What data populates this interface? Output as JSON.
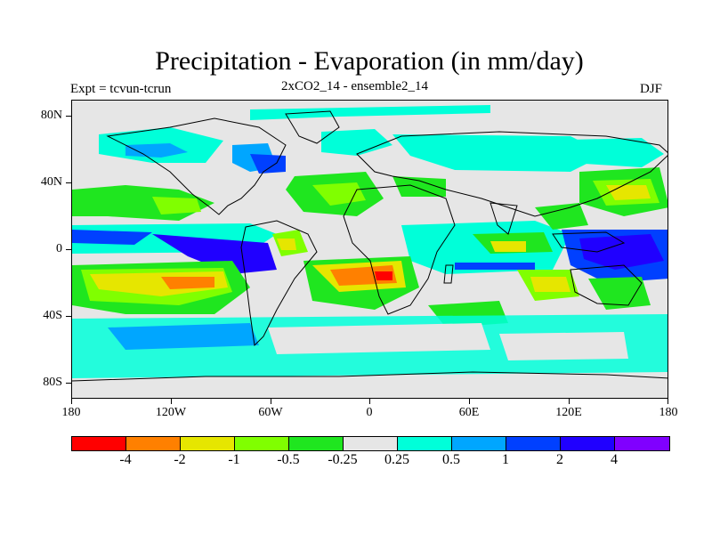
{
  "title": "Precipitation - Evaporation (in mm/day)",
  "subtitle_left": "Expt = tcvun-tcrun",
  "subtitle_center": "2xCO2_14 - ensemble2_14",
  "subtitle_right": "DJF",
  "chart_data": {
    "type": "heatmap",
    "title": "Precipitation - Evaporation (in mm/day)",
    "projection": "cylindrical equidistant",
    "lon_range": [
      -180,
      180
    ],
    "lat_range": [
      -90,
      90
    ],
    "y_ticks": [
      "80N",
      "40N",
      "0",
      "40S",
      "80S"
    ],
    "x_ticks": [
      "180",
      "120W",
      "60W",
      "0",
      "60E",
      "120E",
      "180"
    ],
    "colorbar": {
      "levels": [
        "-4",
        "-2",
        "-1",
        "-0.5",
        "-0.25",
        "0.25",
        "0.5",
        "1",
        "2",
        "4"
      ],
      "colors": [
        "#ff0000",
        "#ff8000",
        "#e6e600",
        "#80ff00",
        "#1fe61f",
        "#e6e6e6",
        "#00ffd9",
        "#00a6ff",
        "#0040ff",
        "#2000ff",
        "#8000ff"
      ]
    },
    "background_color": "#e6e6e6"
  }
}
